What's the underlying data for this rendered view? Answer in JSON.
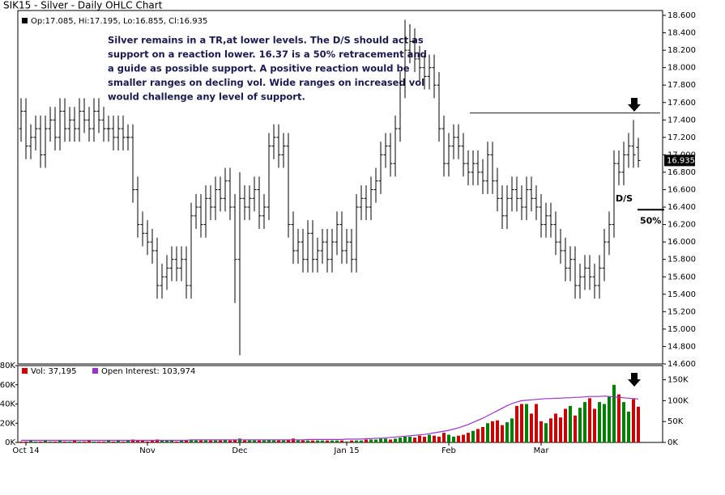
{
  "chart_data": [
    {
      "type": "ohlc",
      "title": "SIK15 - Silver - Daily OHLC Chart",
      "legend": "Op:17.085, Hi:17.195, Lo:16.855, Cl:16.935",
      "color": "#000000",
      "annotation": [
        "Silver remains in a TR,at lower levels.  The D/S should act as",
        "support on a reaction lower.  16.37 is a 50% retracement and",
        "a guide as possible support.  A positive reaction would be",
        "smaller ranges on decling vol.  Wide ranges on increased vol",
        "would challenge any level of support."
      ],
      "resistance_level": 17.48,
      "retracement_level": 16.37,
      "retracement_label": "50%",
      "support_label": "D/S",
      "xlim": [
        -0.67,
        132
      ],
      "ylim": [
        14.6,
        18.6
      ],
      "yticks": [
        {
          "value": 14.6,
          "label": "14.600"
        },
        {
          "value": 14.8,
          "label": "14.800"
        },
        {
          "value": 15.0,
          "label": "15.000"
        },
        {
          "value": 15.2,
          "label": "15.200"
        },
        {
          "value": 15.4,
          "label": "15.400"
        },
        {
          "value": 15.6,
          "label": "15.600"
        },
        {
          "value": 15.8,
          "label": "15.800"
        },
        {
          "value": 16.0,
          "label": "16.000"
        },
        {
          "value": 16.2,
          "label": "16.200"
        },
        {
          "value": 16.4,
          "label": "16.400"
        },
        {
          "value": 16.6,
          "label": "16.600"
        },
        {
          "value": 16.8,
          "label": "16.800"
        },
        {
          "value": 17.0,
          "label": "17.000"
        },
        {
          "value": 17.2,
          "label": "17.200"
        },
        {
          "value": 17.4,
          "label": "17.400"
        },
        {
          "value": 17.6,
          "label": "17.600"
        },
        {
          "value": 17.8,
          "label": "17.800"
        },
        {
          "value": 18.0,
          "label": "18.000"
        },
        {
          "value": 18.2,
          "label": "18.200"
        },
        {
          "value": 18.4,
          "label": "18.400"
        },
        {
          "value": 18.6,
          "label": "18.600"
        }
      ],
      "open": [
        17.3,
        17.5,
        17.1,
        17.2,
        17.3,
        17.0,
        17.3,
        17.4,
        17.2,
        17.5,
        17.3,
        17.4,
        17.3,
        17.5,
        17.4,
        17.3,
        17.5,
        17.4,
        17.3,
        17.3,
        17.2,
        17.3,
        17.2,
        17.2,
        16.6,
        16.2,
        16.1,
        16.0,
        15.9,
        15.5,
        15.6,
        15.7,
        15.8,
        15.7,
        15.8,
        15.5,
        16.3,
        16.4,
        16.2,
        16.5,
        16.4,
        16.6,
        16.5,
        16.7,
        16.4,
        15.8,
        16.5,
        16.4,
        16.5,
        16.6,
        16.3,
        16.4,
        17.1,
        17.2,
        17.0,
        17.1,
        16.2,
        15.9,
        16.0,
        15.8,
        16.1,
        15.8,
        15.9,
        16.0,
        15.8,
        16.0,
        16.2,
        15.9,
        16.0,
        15.8,
        16.4,
        16.5,
        16.4,
        16.6,
        16.7,
        17.0,
        17.1,
        16.9,
        17.3,
        17.8,
        18.2,
        18.3,
        18.1,
        18.0,
        17.9,
        18.0,
        17.8,
        17.3,
        16.9,
        17.1,
        17.2,
        17.1,
        16.9,
        16.8,
        16.9,
        16.8,
        16.7,
        17.0,
        16.7,
        16.5,
        16.3,
        16.5,
        16.6,
        16.5,
        16.4,
        16.6,
        16.5,
        16.4,
        16.2,
        16.3,
        16.2,
        16.0,
        15.9,
        15.7,
        15.8,
        15.5,
        15.6,
        15.7,
        15.6,
        15.5,
        15.7,
        16.0,
        16.2,
        16.9,
        16.8,
        17.0,
        17.1,
        17.085
      ],
      "high": [
        17.65,
        17.65,
        17.35,
        17.45,
        17.45,
        17.45,
        17.55,
        17.55,
        17.65,
        17.65,
        17.55,
        17.55,
        17.65,
        17.65,
        17.55,
        17.65,
        17.65,
        17.55,
        17.45,
        17.45,
        17.45,
        17.45,
        17.35,
        17.35,
        16.75,
        16.35,
        16.25,
        16.15,
        16.05,
        15.75,
        15.85,
        15.95,
        15.95,
        15.95,
        15.95,
        16.45,
        16.55,
        16.55,
        16.65,
        16.65,
        16.75,
        16.75,
        16.85,
        16.85,
        16.55,
        16.8,
        16.65,
        16.65,
        16.75,
        16.75,
        16.55,
        17.25,
        17.35,
        17.35,
        17.25,
        17.25,
        16.35,
        16.15,
        16.15,
        16.25,
        16.25,
        16.05,
        16.15,
        16.15,
        16.15,
        16.35,
        16.35,
        16.15,
        16.15,
        16.55,
        16.65,
        16.65,
        16.75,
        16.85,
        17.15,
        17.25,
        17.25,
        17.45,
        17.95,
        18.55,
        18.5,
        18.45,
        18.25,
        18.15,
        18.15,
        18.15,
        17.95,
        17.45,
        17.25,
        17.35,
        17.35,
        17.25,
        17.05,
        17.05,
        17.05,
        16.95,
        17.15,
        17.15,
        16.85,
        16.65,
        16.65,
        16.75,
        16.75,
        16.65,
        16.75,
        16.75,
        16.65,
        16.55,
        16.45,
        16.45,
        16.35,
        16.15,
        16.05,
        15.95,
        15.95,
        15.75,
        15.85,
        15.85,
        15.75,
        15.85,
        16.15,
        16.35,
        17.05,
        17.05,
        17.15,
        17.25,
        17.4,
        17.195
      ],
      "low": [
        17.15,
        16.95,
        16.95,
        17.05,
        16.85,
        16.85,
        17.15,
        17.05,
        17.05,
        17.15,
        17.15,
        17.15,
        17.15,
        17.25,
        17.15,
        17.15,
        17.25,
        17.15,
        17.15,
        17.05,
        17.05,
        17.05,
        17.05,
        16.45,
        16.05,
        15.95,
        15.85,
        15.75,
        15.35,
        15.35,
        15.45,
        15.55,
        15.55,
        15.55,
        15.35,
        15.35,
        16.15,
        16.05,
        16.05,
        16.25,
        16.25,
        16.35,
        16.35,
        16.25,
        15.3,
        14.7,
        16.25,
        16.25,
        16.35,
        16.15,
        16.15,
        16.25,
        16.95,
        16.85,
        16.85,
        16.05,
        15.75,
        15.75,
        15.65,
        15.65,
        15.65,
        15.65,
        15.75,
        15.65,
        15.65,
        15.85,
        15.75,
        15.75,
        15.65,
        15.65,
        16.25,
        16.25,
        16.25,
        16.45,
        16.55,
        16.85,
        16.75,
        16.75,
        17.15,
        17.65,
        18.05,
        17.95,
        17.85,
        17.75,
        17.75,
        17.65,
        17.15,
        16.75,
        16.75,
        16.95,
        16.95,
        16.75,
        16.65,
        16.65,
        16.65,
        16.55,
        16.55,
        16.55,
        16.35,
        16.15,
        16.15,
        16.35,
        16.35,
        16.25,
        16.25,
        16.35,
        16.25,
        16.05,
        16.05,
        16.05,
        15.85,
        15.75,
        15.55,
        15.55,
        15.35,
        15.35,
        15.45,
        15.45,
        15.35,
        15.35,
        15.55,
        15.85,
        16.05,
        16.65,
        16.65,
        16.85,
        16.85,
        16.855
      ],
      "close": [
        17.5,
        17.1,
        17.2,
        17.3,
        17.0,
        17.3,
        17.4,
        17.2,
        17.5,
        17.3,
        17.4,
        17.3,
        17.5,
        17.4,
        17.3,
        17.5,
        17.4,
        17.3,
        17.3,
        17.2,
        17.3,
        17.2,
        17.2,
        16.6,
        16.2,
        16.1,
        16.0,
        15.9,
        15.5,
        15.6,
        15.7,
        15.8,
        15.7,
        15.8,
        15.5,
        16.3,
        16.4,
        16.2,
        16.5,
        16.4,
        16.6,
        16.5,
        16.7,
        16.4,
        15.8,
        16.5,
        16.4,
        16.5,
        16.6,
        16.3,
        16.4,
        17.1,
        17.2,
        17.0,
        17.1,
        16.2,
        15.9,
        16.0,
        15.8,
        16.1,
        15.8,
        15.9,
        16.0,
        15.8,
        16.0,
        16.2,
        15.9,
        16.0,
        15.8,
        16.4,
        16.5,
        16.4,
        16.6,
        16.7,
        17.0,
        17.1,
        16.9,
        17.3,
        17.8,
        18.2,
        18.3,
        18.1,
        18.0,
        17.9,
        18.0,
        17.8,
        17.3,
        16.9,
        17.1,
        17.2,
        17.1,
        16.9,
        16.8,
        16.9,
        16.8,
        16.7,
        17.0,
        16.7,
        16.5,
        16.3,
        16.5,
        16.6,
        16.5,
        16.4,
        16.6,
        16.5,
        16.4,
        16.2,
        16.3,
        16.2,
        16.0,
        15.9,
        15.7,
        15.8,
        15.5,
        15.6,
        15.7,
        15.6,
        15.5,
        15.7,
        16.0,
        16.2,
        16.9,
        16.8,
        17.0,
        17.1,
        17.0,
        16.935
      ]
    },
    {
      "type": "bar",
      "xlim": [
        -0.67,
        132
      ],
      "xticks": [
        {
          "value": 1,
          "label": "Oct 14"
        },
        {
          "value": 26,
          "label": "Nov"
        },
        {
          "value": 45,
          "label": "Dec"
        },
        {
          "value": 67,
          "label": "Jan 15"
        },
        {
          "value": 88,
          "label": "Feb"
        },
        {
          "value": 107,
          "label": "Mar"
        }
      ],
      "ylim": [
        0,
        80
      ],
      "yticks": [
        {
          "value": 0,
          "label": "0K"
        },
        {
          "value": 20,
          "label": "20K"
        },
        {
          "value": 40,
          "label": "40K"
        },
        {
          "value": 60,
          "label": "60K"
        },
        {
          "value": 80,
          "label": "80K"
        }
      ],
      "y2lim": [
        0,
        184
      ],
      "y2ticks": [
        {
          "value": 0,
          "label": "0K"
        },
        {
          "value": 50,
          "label": "50K"
        },
        {
          "value": 100,
          "label": "100K"
        },
        {
          "value": 150,
          "label": "150K"
        }
      ],
      "series": [
        {
          "name": "Vol: 37,195",
          "color": "#cc0000",
          "up_color": "#008000",
          "values": [
            1,
            1,
            2,
            1,
            1,
            2,
            1,
            1,
            2,
            1,
            1,
            2,
            1,
            1,
            2,
            1,
            1,
            1,
            2,
            1,
            2,
            1,
            2,
            3,
            2,
            2,
            1,
            2,
            3,
            2,
            2,
            2,
            1,
            2,
            2,
            3,
            2,
            2,
            2,
            2,
            2,
            2,
            3,
            2,
            3,
            4,
            2,
            2,
            2,
            2,
            2,
            3,
            2,
            2,
            2,
            3,
            4,
            2,
            2,
            2,
            2,
            2,
            2,
            2,
            2,
            2,
            2,
            1,
            2,
            2,
            2,
            3,
            3,
            3,
            4,
            4,
            3,
            4,
            5,
            6,
            6,
            5,
            7,
            6,
            8,
            7,
            6,
            10,
            8,
            6,
            7,
            8,
            10,
            12,
            14,
            16,
            20,
            22,
            23,
            18,
            21,
            25,
            38,
            40,
            40,
            30,
            40,
            22,
            20,
            25,
            30,
            26,
            35,
            38,
            28,
            36,
            42,
            46,
            35,
            42,
            40,
            48,
            60,
            50,
            42,
            32,
            45,
            37.195
          ]
        },
        {
          "name": "Open Interest: 103,974",
          "color": "#9933cc",
          "axis": "y2",
          "values": [
            5,
            5,
            5,
            5,
            5,
            5,
            5,
            5,
            5,
            5,
            5,
            5,
            5,
            5,
            5,
            5,
            5,
            5,
            5,
            5,
            5,
            5,
            5,
            5,
            5,
            5,
            5,
            5,
            5,
            5,
            5,
            5,
            5,
            5,
            5,
            6,
            6,
            6,
            6,
            6,
            6,
            6,
            6,
            6,
            6,
            6,
            6,
            6,
            6,
            6,
            6,
            6,
            6,
            6,
            6,
            6,
            6,
            6,
            6,
            7,
            7,
            7,
            7,
            7,
            7,
            7,
            7,
            8,
            8,
            8,
            8,
            9,
            9,
            10,
            10,
            11,
            12,
            13,
            14,
            15,
            16,
            17,
            18,
            19,
            21,
            23,
            25,
            27,
            29,
            32,
            35,
            39,
            43,
            48,
            53,
            58,
            64,
            70,
            76,
            82,
            88,
            93,
            97,
            100,
            101,
            102,
            103,
            104,
            105,
            105,
            106,
            106,
            107,
            107,
            108,
            108,
            109,
            110,
            110,
            110,
            111,
            110,
            109,
            108,
            107,
            106,
            105,
            103.974
          ]
        }
      ]
    }
  ]
}
